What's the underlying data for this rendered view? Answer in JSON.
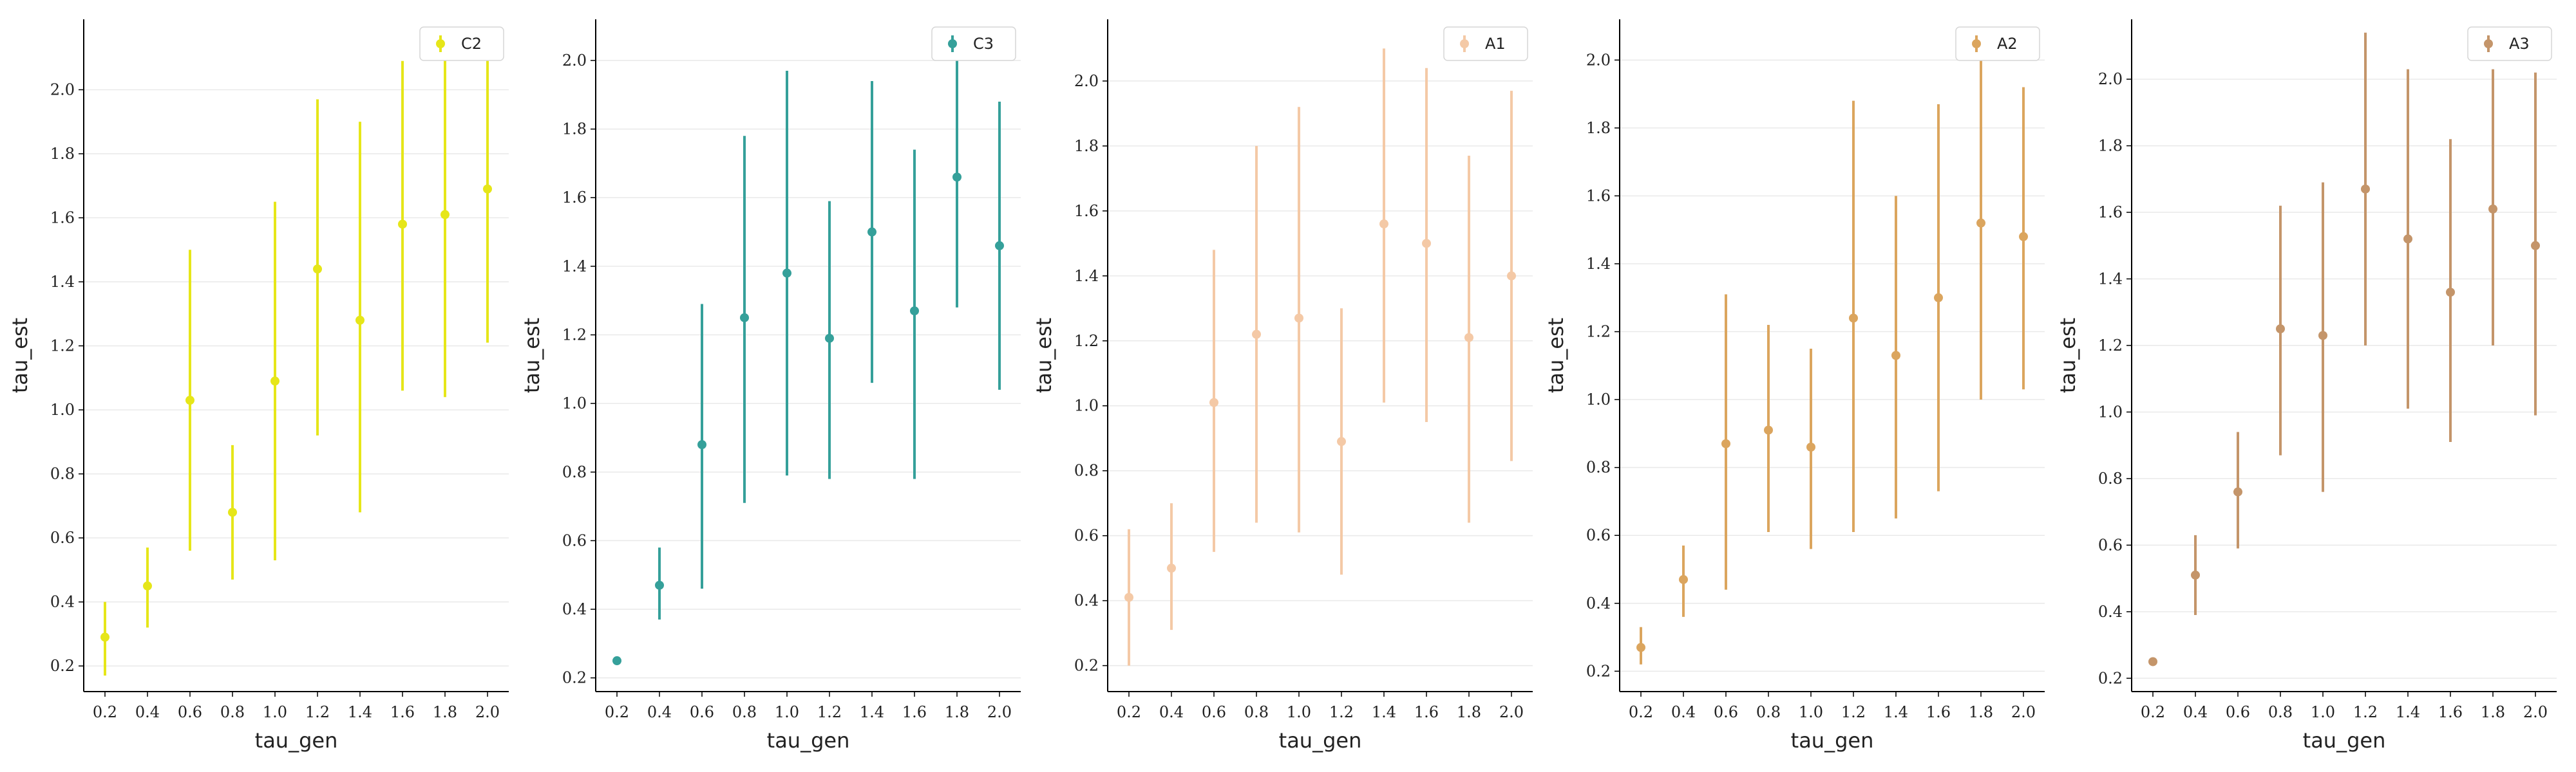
{
  "chart_data": [
    {
      "type": "scatter",
      "error_bars": true,
      "xlabel": "tau_gen",
      "ylabel": "tau_est",
      "grid": "horizontal",
      "legend": "top-right",
      "color": "#e6e619",
      "ylim": [
        0.12,
        2.22
      ],
      "yticks": [
        0.2,
        0.4,
        0.6,
        0.8,
        1.0,
        1.2,
        1.4,
        1.6,
        1.8,
        2.0
      ],
      "x": [
        0.2,
        0.4,
        0.6,
        0.8,
        1.0,
        1.2,
        1.4,
        1.6,
        1.8,
        2.0
      ],
      "series": [
        {
          "name": "C2",
          "y": [
            0.29,
            0.45,
            1.03,
            0.68,
            1.09,
            1.44,
            1.28,
            1.58,
            1.61,
            1.69
          ],
          "err_low": [
            0.17,
            0.32,
            0.56,
            0.47,
            0.53,
            0.92,
            0.68,
            1.06,
            1.04,
            1.21
          ],
          "err_high": [
            0.4,
            0.57,
            1.5,
            0.89,
            1.65,
            1.97,
            1.9,
            2.09,
            2.17,
            2.17
          ]
        }
      ]
    },
    {
      "type": "scatter",
      "error_bars": true,
      "xlabel": "tau_gen",
      "ylabel": "tau_est",
      "grid": "horizontal",
      "legend": "top-right",
      "color": "#35a09a",
      "ylim": [
        0.16,
        2.12
      ],
      "yticks": [
        0.2,
        0.4,
        0.6,
        0.8,
        1.0,
        1.2,
        1.4,
        1.6,
        1.8,
        2.0
      ],
      "x": [
        0.2,
        0.4,
        0.6,
        0.8,
        1.0,
        1.2,
        1.4,
        1.6,
        1.8,
        2.0
      ],
      "series": [
        {
          "name": "C3",
          "y": [
            0.25,
            0.47,
            0.88,
            1.25,
            1.38,
            1.19,
            1.5,
            1.27,
            1.66,
            1.46
          ],
          "err_low": [
            0.25,
            0.37,
            0.46,
            0.71,
            0.79,
            0.78,
            1.06,
            0.78,
            1.28,
            1.04
          ],
          "err_high": [
            0.25,
            0.58,
            1.29,
            1.78,
            1.97,
            1.59,
            1.94,
            1.74,
            2.01,
            1.88
          ]
        }
      ]
    },
    {
      "type": "scatter",
      "error_bars": true,
      "xlabel": "tau_gen",
      "ylabel": "tau_est",
      "grid": "horizontal",
      "legend": "top-right",
      "color": "#f4c9a6",
      "ylim": [
        0.12,
        2.19
      ],
      "yticks": [
        0.2,
        0.4,
        0.6,
        0.8,
        1.0,
        1.2,
        1.4,
        1.6,
        1.8,
        2.0
      ],
      "x": [
        0.2,
        0.4,
        0.6,
        0.8,
        1.0,
        1.2,
        1.4,
        1.6,
        1.8,
        2.0
      ],
      "series": [
        {
          "name": "A1",
          "y": [
            0.41,
            0.5,
            1.01,
            1.22,
            1.27,
            0.89,
            1.56,
            1.5,
            1.21,
            1.4
          ],
          "err_low": [
            0.2,
            0.31,
            0.55,
            0.64,
            0.61,
            0.48,
            1.01,
            0.95,
            0.64,
            0.83
          ],
          "err_high": [
            0.62,
            0.7,
            1.48,
            1.8,
            1.92,
            1.3,
            2.1,
            2.04,
            1.77,
            1.97
          ]
        }
      ]
    },
    {
      "type": "scatter",
      "error_bars": true,
      "xlabel": "tau_gen",
      "ylabel": "tau_est",
      "grid": "horizontal",
      "legend": "top-right",
      "color": "#dba55e",
      "ylim": [
        0.14,
        2.12
      ],
      "yticks": [
        0.2,
        0.4,
        0.6,
        0.8,
        1.0,
        1.2,
        1.4,
        1.6,
        1.8,
        2.0
      ],
      "x": [
        0.2,
        0.4,
        0.6,
        0.8,
        1.0,
        1.2,
        1.4,
        1.6,
        1.8,
        2.0
      ],
      "series": [
        {
          "name": "A2",
          "y": [
            0.27,
            0.47,
            0.87,
            0.91,
            0.86,
            1.24,
            1.13,
            1.3,
            1.52,
            1.48
          ],
          "err_low": [
            0.22,
            0.36,
            0.44,
            0.61,
            0.56,
            0.61,
            0.65,
            0.73,
            1.0,
            1.03
          ],
          "err_high": [
            0.33,
            0.57,
            1.31,
            1.22,
            1.15,
            1.88,
            1.6,
            1.87,
            2.03,
            1.92
          ]
        }
      ]
    },
    {
      "type": "scatter",
      "error_bars": true,
      "xlabel": "tau_gen",
      "ylabel": "tau_est",
      "grid": "horizontal",
      "legend": "top-right",
      "color": "#c4956a",
      "ylim": [
        0.16,
        2.18
      ],
      "yticks": [
        0.2,
        0.4,
        0.6,
        0.8,
        1.0,
        1.2,
        1.4,
        1.6,
        1.8,
        2.0
      ],
      "x": [
        0.2,
        0.4,
        0.6,
        0.8,
        1.0,
        1.2,
        1.4,
        1.6,
        1.8,
        2.0
      ],
      "series": [
        {
          "name": "A3",
          "y": [
            0.25,
            0.51,
            0.76,
            1.25,
            1.23,
            1.67,
            1.52,
            1.36,
            1.61,
            1.5
          ],
          "err_low": [
            0.25,
            0.39,
            0.59,
            0.87,
            0.76,
            1.2,
            1.01,
            0.91,
            1.2,
            0.99
          ],
          "err_high": [
            0.25,
            0.63,
            0.94,
            1.62,
            1.69,
            2.14,
            2.03,
            1.82,
            2.03,
            2.02
          ]
        }
      ]
    }
  ]
}
